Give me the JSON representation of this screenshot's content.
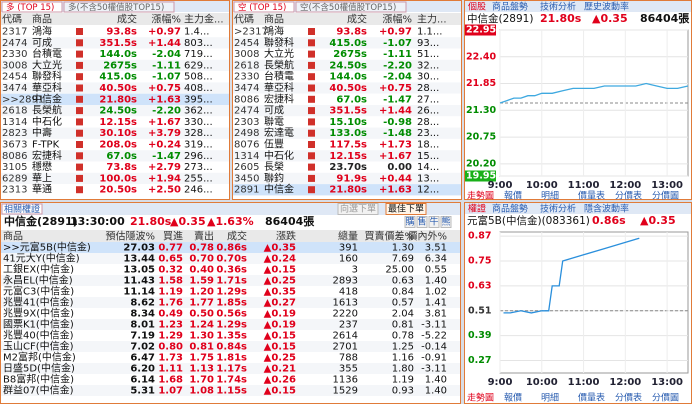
{
  "long_panel": {
    "tabs": [
      "多 (TOP 15)",
      "多(不含50權值股TOP15)"
    ],
    "columns": [
      "代碼",
      "商品",
      "成交",
      "漲幅%",
      "主力金..."
    ],
    "rows": [
      [
        "2317",
        "鴻海",
        "93.8s",
        "+0.97",
        "1.4..."
      ],
      [
        "2474",
        "可成",
        "351.5s",
        "+1.44",
        "803..."
      ],
      [
        "2330",
        "台積電",
        "144.0s",
        "-2.04",
        "719..."
      ],
      [
        "3008",
        "大立光",
        "2675s",
        "-1.11",
        "629..."
      ],
      [
        "2454",
        "聯發科",
        "415.0s",
        "-1.07",
        "508..."
      ],
      [
        "3474",
        "華亞科",
        "40.50s",
        "+0.75",
        "408..."
      ],
      [
        ">>2891",
        "中信金",
        "21.80s",
        "+1.63",
        "395..."
      ],
      [
        "2618",
        "長榮航",
        "24.50s",
        "-2.20",
        "362..."
      ],
      [
        "1314",
        "中石化",
        "12.15s",
        "+1.67",
        "330..."
      ],
      [
        "2823",
        "中壽",
        "30.10s",
        "+3.79",
        "328..."
      ],
      [
        "3673",
        "F-TPK",
        "208.0s",
        "+0.24",
        "319..."
      ],
      [
        "8086",
        "宏捷科",
        "67.0s",
        "-1.47",
        "296..."
      ],
      [
        "3105",
        "穩懋",
        "73.8s",
        "+2.79",
        "273..."
      ],
      [
        "6289",
        "華上",
        "100.0s",
        "+1.94",
        "255..."
      ],
      [
        "2313",
        "華通",
        "20.50s",
        "+2.50",
        "246..."
      ]
    ]
  },
  "short_panel": {
    "tabs": [
      "空 (TOP 15)",
      "空(不含50權值股TOP15)"
    ],
    "columns": [
      "代碼",
      "商品",
      "成交",
      "漲幅%",
      "主力..."
    ],
    "rows": [
      [
        ">2317",
        "鴻海",
        "93.8s",
        "+0.97",
        "1.1..."
      ],
      [
        "2454",
        "聯發科",
        "415.0s",
        "-1.07",
        "93..."
      ],
      [
        "3008",
        "大立光",
        "2675s",
        "-1.11",
        "51..."
      ],
      [
        "2618",
        "長榮航",
        "24.50s",
        "-2.20",
        "32..."
      ],
      [
        "2330",
        "台積電",
        "144.0s",
        "-2.04",
        "30..."
      ],
      [
        "3474",
        "華亞科",
        "40.50s",
        "+0.75",
        "28..."
      ],
      [
        "8086",
        "宏捷科",
        "67.0s",
        "-1.47",
        "27..."
      ],
      [
        "2474",
        "可成",
        "351.5s",
        "+1.44",
        "26..."
      ],
      [
        "2303",
        "聯電",
        "15.10s",
        "-0.98",
        "28..."
      ],
      [
        "2498",
        "宏達電",
        "133.0s",
        "-1.48",
        "23..."
      ],
      [
        "8076",
        "伍豐",
        "117.5s",
        "+1.73",
        "18..."
      ],
      [
        "1314",
        "中石化",
        "12.15s",
        "+1.67",
        "15..."
      ],
      [
        "2605",
        "長榮",
        "23.70s",
        "0.00",
        "14..."
      ],
      [
        "3450",
        "聯鈞",
        "91.9s",
        "+0.44",
        "13..."
      ],
      [
        "2891",
        "中信金",
        "21.80s",
        "+1.63",
        "12..."
      ]
    ]
  },
  "warrant_panel": {
    "tab": "相關權證",
    "underlying": "中信金(2891)",
    "time": "13:30:00",
    "price": "21.80s",
    "change": "▲0.35",
    "change_pct": "▲1.63%",
    "volume": "86404張",
    "buttons": [
      "向選下單",
      "最佳下單",
      "購",
      "售",
      "牛",
      "熊"
    ],
    "columns": [
      "商品",
      "預估隱波%",
      "買進",
      "賣出",
      "成交",
      "漲跌",
      "總量",
      "買賣價差%",
      "價內外%"
    ],
    "rows": [
      [
        ">>元富5B(中信金)",
        "27.03",
        "0.77",
        "0.78",
        "0.86s",
        "▲0.35",
        "391",
        "1.30",
        "3.51"
      ],
      [
        "41元大Y(中信金)",
        "13.44",
        "0.65",
        "0.70",
        "0.70s",
        "▲0.24",
        "160",
        "7.69",
        "6.34"
      ],
      [
        "工銀EX(中信金)",
        "13.05",
        "0.32",
        "0.40",
        "0.36s",
        "▲0.15",
        "3",
        "25.00",
        "0.55"
      ],
      [
        "永昌EL(中信金)",
        "11.43",
        "1.58",
        "1.59",
        "1.71s",
        "▲0.25",
        "2893",
        "0.63",
        "1.40"
      ],
      [
        "元富C3(中信金)",
        "11.14",
        "1.19",
        "1.20",
        "1.29s",
        "▲0.35",
        "418",
        "0.84",
        "1.02"
      ],
      [
        "兆豐41(中信金)",
        "8.62",
        "1.76",
        "1.77",
        "1.85s",
        "▲0.27",
        "1613",
        "0.57",
        "1.41"
      ],
      [
        "兆豐9X(中信金)",
        "8.34",
        "0.49",
        "0.50",
        "0.56s",
        "▲0.19",
        "2220",
        "2.04",
        "3.81"
      ],
      [
        "國票K1(中信金)",
        "8.01",
        "1.23",
        "1.24",
        "1.29s",
        "▲0.19",
        "237",
        "0.81",
        "-3.11"
      ],
      [
        "兆豐40(中信金)",
        "7.19",
        "1.29",
        "1.30",
        "1.35s",
        "▲0.15",
        "2614",
        "0.78",
        "-5.22"
      ],
      [
        "玉山CF(中信金)",
        "7.02",
        "0.80",
        "0.81",
        "0.84s",
        "▲0.15",
        "2701",
        "1.25",
        "-0.14"
      ],
      [
        "M2富邦(中信金)",
        "6.47",
        "1.73",
        "1.75",
        "1.81s",
        "▲0.25",
        "788",
        "1.16",
        "-0.91"
      ],
      [
        "日盛5D(中信金)",
        "6.20",
        "1.11",
        "1.13",
        "1.17s",
        "▲0.21",
        "355",
        "1.80",
        "-3.11"
      ],
      [
        "B8富邦(中信金)",
        "6.14",
        "1.68",
        "1.70",
        "1.74s",
        "▲0.26",
        "1136",
        "1.19",
        "1.40"
      ],
      [
        "群益07(中信金)",
        "5.31",
        "1.07",
        "1.08",
        "1.15s",
        "▲0.15",
        "1529",
        "0.93",
        "1.40"
      ]
    ]
  },
  "chart_data": [
    {
      "type": "line",
      "tabs": [
        "個股",
        "商品盤勢",
        "技術分析",
        "歷史波動率"
      ],
      "title": "中信金(2891)",
      "price": "21.80s",
      "change": "▲0.35",
      "volume": "86404張",
      "bottom_tabs": [
        "走勢圖",
        "報價",
        "明細",
        "價量表",
        "分價表",
        "分價圖"
      ],
      "x": [
        "9:00",
        "9:10",
        "9:20",
        "9:30",
        "9:40",
        "9:50",
        "10:00",
        "10:15",
        "10:30",
        "10:45",
        "11:00",
        "11:15",
        "11:30",
        "11:45",
        "12:00",
        "12:15",
        "12:30",
        "12:45",
        "13:00",
        "13:15",
        "13:30"
      ],
      "series": [
        {
          "color": "#3fa9e0",
          "values": [
            21.45,
            21.5,
            21.55,
            21.55,
            21.6,
            21.6,
            21.65,
            21.65,
            21.7,
            21.75,
            21.75,
            21.75,
            21.8,
            21.8,
            21.8,
            21.8,
            21.85,
            21.8,
            21.75,
            21.75,
            21.8
          ]
        }
      ],
      "reference": 21.45,
      "xlim": [
        "9:00",
        "13:30"
      ],
      "xticks": [
        "9:00",
        "10:00",
        "11:00",
        "12:00",
        "13:00"
      ],
      "ylim": [
        19.95,
        22.95
      ],
      "yticks": [
        22.95,
        {
          "value": 22.4,
          "label": "22.40"
        },
        21.85,
        {
          "value": 21.3,
          "label": "21.30"
        },
        20.75,
        {
          "value": 20.2,
          "label": "20.20"
        },
        19.95
      ]
    },
    {
      "type": "line",
      "tabs": [
        "權證",
        "商品盤勢",
        "技術分析",
        "隱含波動率"
      ],
      "title": "元富5B(中信金)(083361)",
      "price": "0.86s",
      "change": "▲0.35",
      "bottom_tabs": [
        "走勢圖",
        "報價",
        "明細",
        "價量表",
        "分價表",
        "分價圖"
      ],
      "x": [
        "9:05",
        "9:15",
        "9:30",
        "9:45",
        "10:00",
        "10:10",
        "10:15",
        "10:25",
        "10:30",
        "11:00",
        "11:30",
        "12:00",
        "12:20"
      ],
      "series": [
        {
          "color": "#2a8fdc",
          "values": [
            0.5,
            0.5,
            0.51,
            0.5,
            0.51,
            0.51,
            0.63,
            0.63,
            0.75,
            0.78,
            0.81,
            0.84,
            0.86
          ]
        }
      ],
      "reference": 0.51,
      "xlim": [
        "9:00",
        "13:30"
      ],
      "xticks": [
        "9:00",
        "10:00",
        "11:00",
        "12:00",
        "13:00"
      ],
      "ylim": [
        0.21,
        0.89
      ],
      "yticks": [
        0.87,
        0.75,
        0.63,
        0.51,
        0.39,
        0.27
      ]
    }
  ]
}
